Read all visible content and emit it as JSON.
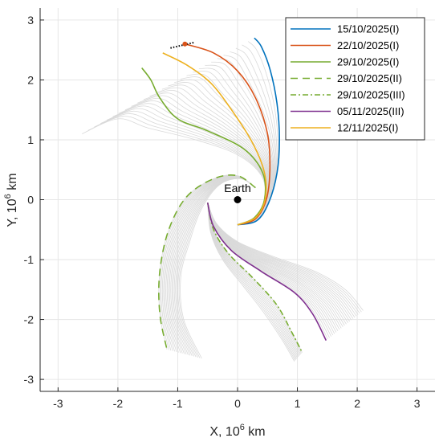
{
  "chart_data": {
    "type": "line",
    "xlabel": "X, 10",
    "xlabel_sup": "6",
    "xlabel_unit": " km",
    "ylabel": "Y, 10",
    "ylabel_sup": "6",
    "ylabel_unit": " km",
    "xlim": [
      -3.3,
      3.3
    ],
    "ylim": [
      -3.2,
      3.2
    ],
    "xticks": [
      -3,
      -2,
      -1,
      0,
      1,
      2,
      3
    ],
    "yticks": [
      -3,
      -2,
      -1,
      0,
      1,
      2,
      3
    ],
    "grid": true,
    "legend_position": "top-right",
    "annotation": {
      "text": "Earth",
      "x": 0,
      "y": 0
    },
    "series": [
      {
        "name": "15/10/2025(I)",
        "color": "#0072BD",
        "dash": "solid",
        "points": [
          [
            0,
            -0.42
          ],
          [
            0.32,
            -0.35
          ],
          [
            0.52,
            -0.05
          ],
          [
            0.66,
            0.45
          ],
          [
            0.7,
            1.0
          ],
          [
            0.66,
            1.6
          ],
          [
            0.55,
            2.15
          ],
          [
            0.4,
            2.55
          ],
          [
            0.28,
            2.7
          ]
        ]
      },
      {
        "name": "22/10/2025(I)",
        "color": "#D95319",
        "dash": "solid",
        "points": [
          [
            0,
            -0.42
          ],
          [
            0.3,
            -0.32
          ],
          [
            0.48,
            0.0
          ],
          [
            0.54,
            0.5
          ],
          [
            0.5,
            1.1
          ],
          [
            0.3,
            1.7
          ],
          [
            0.0,
            2.15
          ],
          [
            -0.4,
            2.45
          ],
          [
            -0.88,
            2.6
          ]
        ]
      },
      {
        "name": "29/10/2025(I)",
        "color": "#77AC30",
        "dash": "solid",
        "points": [
          [
            0,
            -0.42
          ],
          [
            0.28,
            -0.3
          ],
          [
            0.45,
            0.0
          ],
          [
            0.42,
            0.45
          ],
          [
            0.1,
            0.85
          ],
          [
            -0.5,
            1.15
          ],
          [
            -1.0,
            1.35
          ],
          [
            -1.3,
            1.7
          ],
          [
            -1.45,
            2.0
          ],
          [
            -1.6,
            2.2
          ]
        ]
      },
      {
        "name": "29/10/2025(II)",
        "color": "#77AC30",
        "dash": "long-dash",
        "points": [
          [
            0.3,
            0.2
          ],
          [
            0.0,
            0.4
          ],
          [
            -0.4,
            0.35
          ],
          [
            -0.85,
            0.05
          ],
          [
            -1.15,
            -0.5
          ],
          [
            -1.3,
            -1.2
          ],
          [
            -1.3,
            -1.9
          ],
          [
            -1.18,
            -2.5
          ]
        ]
      },
      {
        "name": "29/10/2025(III)",
        "color": "#77AC30",
        "dash": "dash-dot",
        "points": [
          [
            -0.5,
            -0.05
          ],
          [
            -0.4,
            -0.5
          ],
          [
            -0.15,
            -0.9
          ],
          [
            0.25,
            -1.3
          ],
          [
            0.65,
            -1.75
          ],
          [
            0.9,
            -2.2
          ],
          [
            1.08,
            -2.55
          ]
        ]
      },
      {
        "name": "05/11/2025(III)",
        "color": "#7E2F8E",
        "dash": "solid",
        "points": [
          [
            -0.5,
            -0.05
          ],
          [
            -0.4,
            -0.45
          ],
          [
            -0.1,
            -0.85
          ],
          [
            0.4,
            -1.2
          ],
          [
            0.95,
            -1.55
          ],
          [
            1.25,
            -1.9
          ],
          [
            1.48,
            -2.35
          ]
        ]
      },
      {
        "name": "12/11/2025(I)",
        "color": "#EDB120",
        "dash": "solid",
        "points": [
          [
            0,
            -0.42
          ],
          [
            0.3,
            -0.3
          ],
          [
            0.46,
            0.0
          ],
          [
            0.45,
            0.45
          ],
          [
            0.25,
            0.95
          ],
          [
            -0.1,
            1.5
          ],
          [
            -0.45,
            1.95
          ],
          [
            -0.85,
            2.25
          ],
          [
            -1.25,
            2.45
          ]
        ]
      }
    ]
  }
}
